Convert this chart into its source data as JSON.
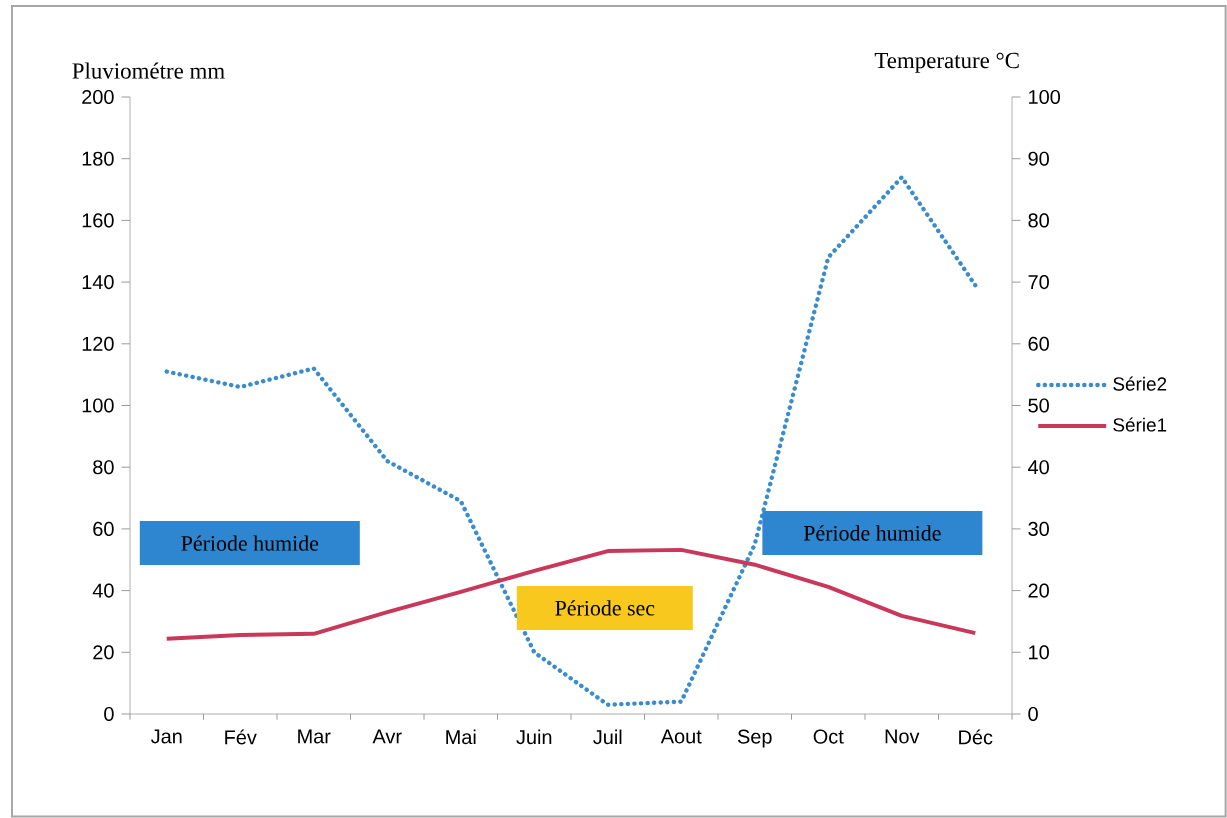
{
  "chart_data": {
    "type": "line",
    "categories": [
      "Jan",
      "Fév",
      "Mar",
      "Avr",
      "Mai",
      "Juin",
      "Juil",
      "Aout",
      "Sep",
      "Oct",
      "Nov",
      "Déc"
    ],
    "series": [
      {
        "name": "Série2",
        "color": "#3a8ccc",
        "line_style": "dotted",
        "values": [
          111,
          106,
          112,
          82,
          69,
          20,
          3,
          4,
          55,
          148,
          174,
          139
        ]
      },
      {
        "name": "Série1",
        "color": "#c8385a",
        "line_style": "solid",
        "axis": "y2",
        "values": [
          12.2,
          12.8,
          13,
          16.5,
          19.8,
          23.2,
          26.4,
          26.6,
          24.2,
          20.6,
          15.9,
          13.1
        ]
      }
    ],
    "ylabel": "Pluviométre mm",
    "y2label": "Temperature °C",
    "ylim": [
      0,
      200
    ],
    "yticks": [
      0,
      20,
      40,
      60,
      80,
      100,
      120,
      140,
      160,
      180,
      200
    ],
    "y2lim": [
      0,
      100
    ],
    "y2ticks": [
      0,
      10,
      20,
      30,
      40,
      50,
      60,
      70,
      80,
      90,
      100
    ],
    "legend": "right",
    "marker": "none",
    "annotations": [
      "Période humide",
      "Période sec",
      "Période humide"
    ]
  }
}
